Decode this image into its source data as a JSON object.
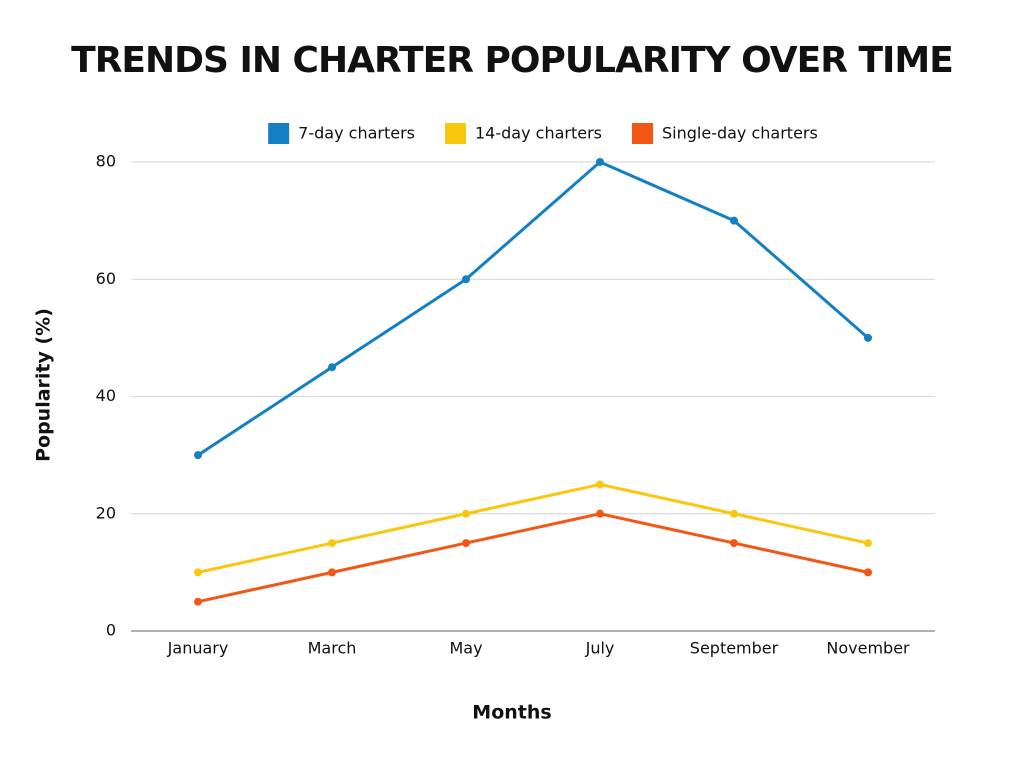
{
  "chart_data": {
    "type": "line",
    "title": "TRENDS IN CHARTER POPULARITY OVER TIME",
    "x_label": "Months",
    "y_label": "Popularity (%)",
    "categories": [
      "January",
      "March",
      "May",
      "July",
      "September",
      "November"
    ],
    "series": [
      {
        "name": "7-day charters",
        "color": "#1380c4",
        "values": [
          30,
          45,
          60,
          80,
          70,
          50
        ]
      },
      {
        "name": "14-day charters",
        "color": "#f9c80e",
        "values": [
          10,
          15,
          20,
          25,
          20,
          15
        ]
      },
      {
        "name": "Single-day charters",
        "color": "#f25716",
        "values": [
          5,
          10,
          15,
          20,
          15,
          10
        ]
      }
    ],
    "ylim": [
      0,
      80
    ],
    "yticks": [
      0,
      20,
      40,
      60,
      80
    ],
    "grid": true,
    "legend": "top"
  }
}
